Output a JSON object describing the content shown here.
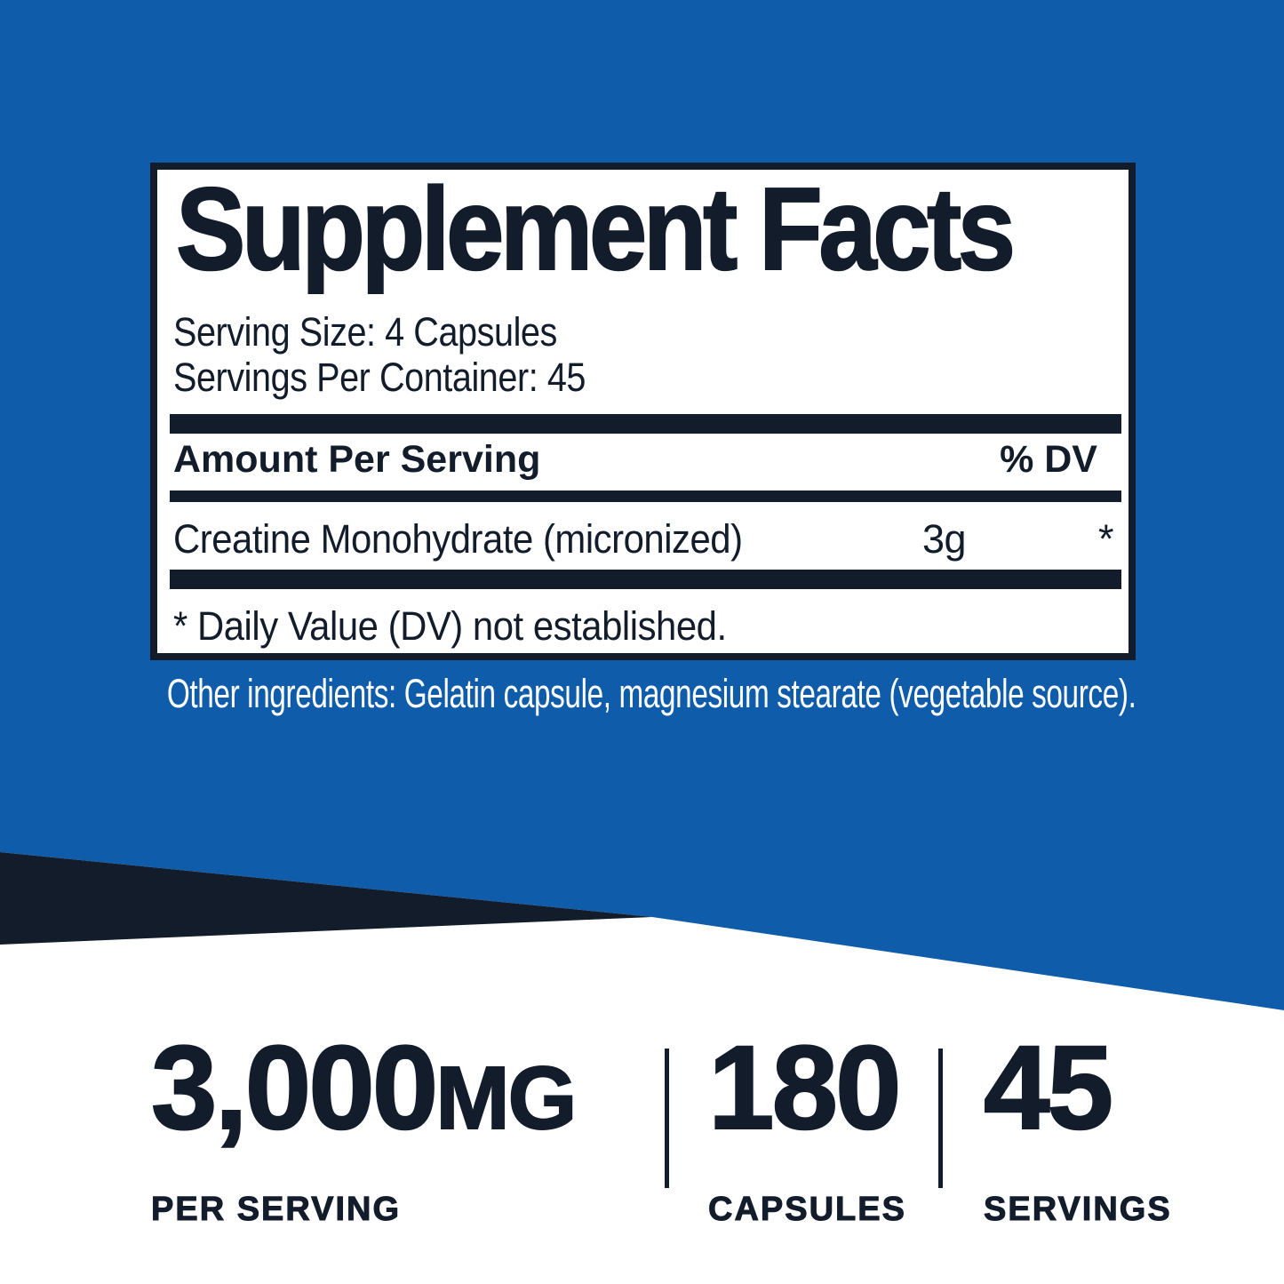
{
  "colors": {
    "blue": "#0F5CAB",
    "navy": "#121C2A",
    "white": "#FFFFFF"
  },
  "facts_panel": {
    "title": "Supplement Facts",
    "serving_size": "Serving Size: 4 Capsules",
    "servings_per_container": "Servings Per Container: 45",
    "amount_header": "Amount Per Serving",
    "dv_header": "% DV",
    "rows": [
      {
        "name": "Creatine Monohydrate (micronized)",
        "amount": "3g",
        "dv": "*"
      }
    ],
    "footnote": "* Daily Value (DV) not established."
  },
  "other_ingredients": "Other ingredients: Gelatin capsule, magnesium stearate (vegetable source).",
  "stats": [
    {
      "value": "3,000",
      "unit": "MG",
      "label": "PER SERVING"
    },
    {
      "value": "180",
      "unit": "",
      "label": "CAPSULES"
    },
    {
      "value": "45",
      "unit": "",
      "label": "SERVINGS"
    }
  ]
}
